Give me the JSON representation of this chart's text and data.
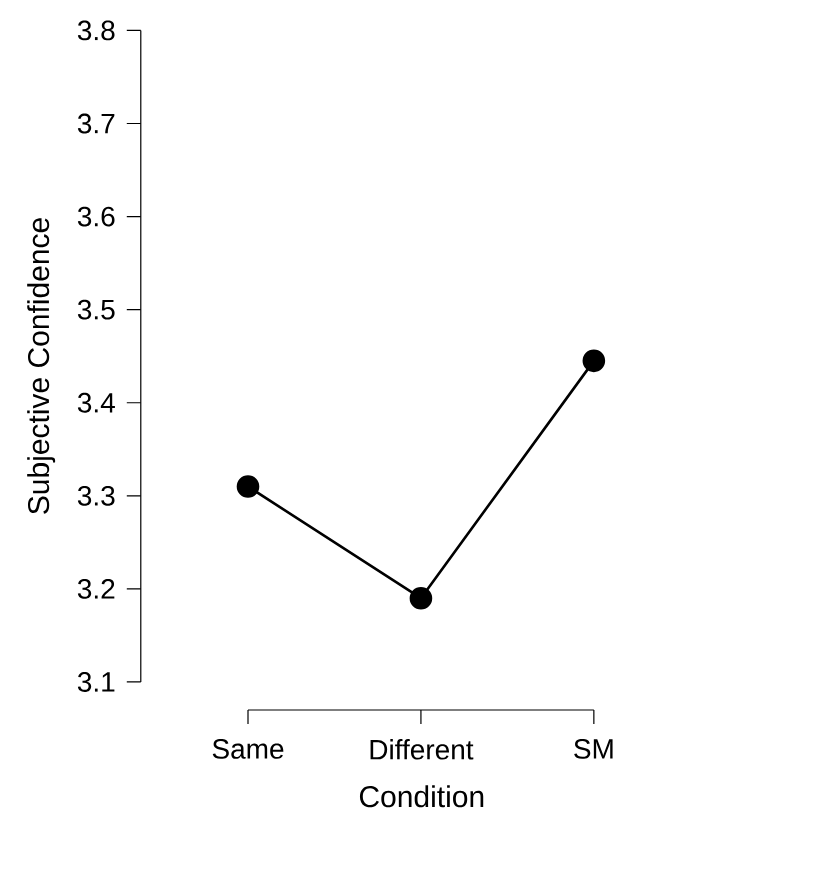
{
  "chart_data": {
    "type": "line",
    "xlabel": "Condition",
    "ylabel": "Subjective Confidence",
    "categories": [
      "Same",
      "Different",
      "SM"
    ],
    "values": [
      3.31,
      3.19,
      3.445
    ],
    "color": "#000000",
    "marker": "circle",
    "line_style": "solid",
    "ylim": [
      3.1,
      3.8
    ],
    "yticks": [
      3.1,
      3.2,
      3.3,
      3.4,
      3.5,
      3.6,
      3.7,
      3.8
    ],
    "grid": false
  }
}
